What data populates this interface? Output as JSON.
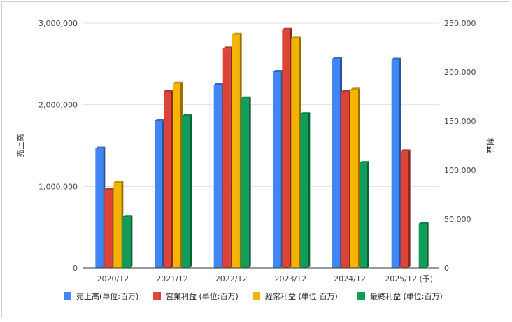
{
  "chart_data": {
    "type": "bar",
    "categories": [
      "2020/12",
      "2021/12",
      "2022/12",
      "2023/12",
      "2024/12",
      "2025/12 (予)"
    ],
    "series": [
      {
        "name": "売上高(単位:百万)",
        "axis": "left",
        "color": "#4285f4",
        "values": [
          1460000,
          1800000,
          2240000,
          2400000,
          2560000,
          2550000
        ]
      },
      {
        "name": "営業利益 (単位:百万)",
        "axis": "right",
        "color": "#db4437",
        "values": [
          80000,
          180000,
          224000,
          243000,
          180000,
          119000
        ]
      },
      {
        "name": "経常利益 (単位:百万)",
        "axis": "right",
        "color": "#f4b400",
        "values": [
          87000,
          188000,
          238000,
          234000,
          182000,
          null
        ]
      },
      {
        "name": "最終利益 (単位:百万)",
        "axis": "right",
        "color": "#0f9d58",
        "values": [
          52000,
          155000,
          173000,
          157000,
          107000,
          45000
        ]
      }
    ],
    "ylabel": "売上高",
    "y2label": "利益",
    "ylim": [
      0,
      3000000
    ],
    "y2lim": [
      0,
      250000
    ],
    "yticks": [
      0,
      1000000,
      2000000,
      3000000
    ],
    "yticks_labels": [
      "0",
      "1,000,000",
      "2,000,000",
      "3,000,000"
    ],
    "y2ticks": [
      0,
      50000,
      100000,
      150000,
      200000,
      250000
    ],
    "y2ticks_labels": [
      "0",
      "50,000",
      "100,000",
      "150,000",
      "200,000",
      "250,000"
    ],
    "grid": true,
    "legend_position": "bottom"
  }
}
